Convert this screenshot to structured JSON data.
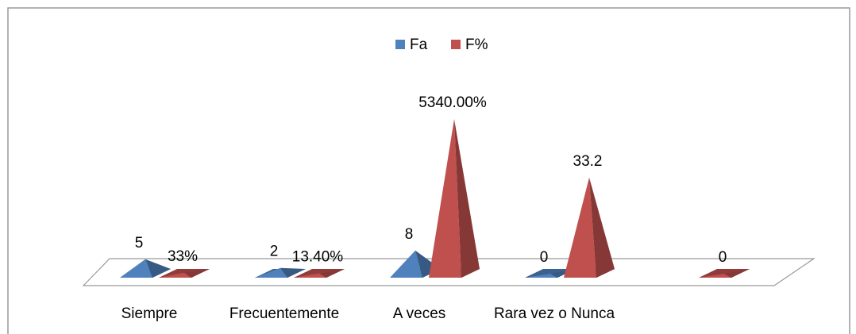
{
  "chart_data": {
    "type": "pyramid3d",
    "categories": [
      "Siempre",
      "Frecuentemente",
      "A veces",
      "Rara vez o Nunca",
      null
    ],
    "series": [
      {
        "name": "Fa",
        "color": "#4f81bd",
        "values": [
          5,
          2,
          8,
          0,
          null
        ],
        "value_labels": [
          "5",
          "2",
          "8",
          "0",
          null
        ]
      },
      {
        "name": "F%",
        "color": "#c0504d",
        "values": [
          0.33,
          0.134,
          53.4,
          33.2,
          0
        ],
        "value_labels": [
          "33%",
          "13.40%",
          "5340.00%",
          "33.2",
          "0"
        ]
      }
    ],
    "legend": "top"
  }
}
